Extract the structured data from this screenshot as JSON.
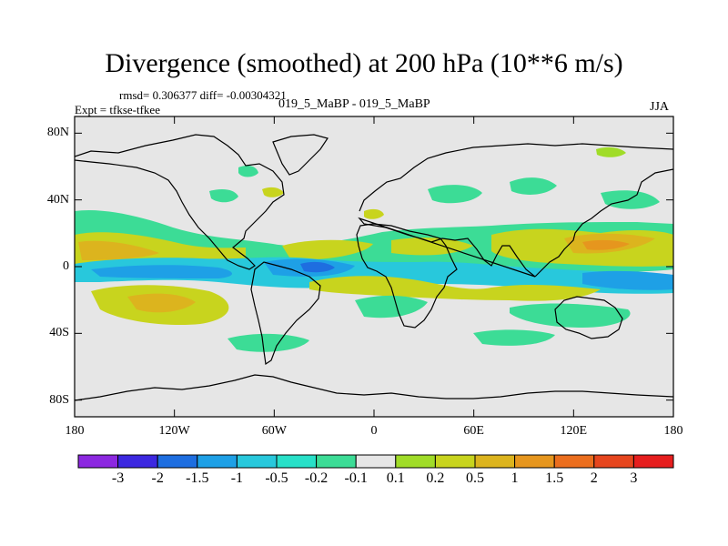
{
  "title": "Divergence (smoothed) at 200 hPa (10**6 m/s)",
  "stats": {
    "rmsd_text": "rmsd= 0.306377 diff= -0.00304321"
  },
  "experiment": "Expt = tfkse-tfkee",
  "cases": "019_5_MaBP - 019_5_MaBP",
  "season": "JJA",
  "chart_data": {
    "type": "heatmap",
    "title": "Divergence (smoothed) at 200 hPa (10**6 m/s)",
    "x_axis": {
      "range": [
        -180,
        180
      ],
      "ticks": [
        -180,
        -120,
        -60,
        0,
        60,
        120,
        180
      ],
      "tick_labels": [
        "180",
        "120W",
        "60W",
        "0",
        "60E",
        "120E",
        "180"
      ]
    },
    "y_axis": {
      "range": [
        -90,
        90
      ],
      "ticks": [
        80,
        40,
        0,
        -40,
        -80
      ],
      "tick_labels": [
        "80N",
        "40N",
        "0",
        "40S",
        "80S"
      ]
    },
    "colorbar": {
      "colors": [
        "#8c28e0",
        "#3c28e0",
        "#1e6ee0",
        "#1ea0e6",
        "#28c8dc",
        "#28e0c8",
        "#3cdc96",
        "#e6e6e6",
        "#a0dc28",
        "#c8d41e",
        "#dcb41e",
        "#e6961e",
        "#eb6e1e",
        "#e6461e",
        "#e61e1e"
      ],
      "labels": [
        "-3",
        "-2",
        "-1.5",
        "-1",
        "-0.5",
        "-0.2",
        "-0.1",
        "0.1",
        "0.2",
        "0.5",
        "1",
        "1.5",
        "2",
        "3"
      ]
    },
    "field_features": [
      {
        "lon": -160,
        "lat": 10,
        "value": 1.0
      },
      {
        "lon": -120,
        "lat": 12,
        "value": 0.5
      },
      {
        "lon": -150,
        "lat": -2,
        "value": -0.5
      },
      {
        "lon": -60,
        "lat": -5,
        "value": -1.0
      },
      {
        "lon": -35,
        "lat": -2,
        "value": -2.0
      },
      {
        "lon": -145,
        "lat": -22,
        "value": 1.0
      },
      {
        "lon": 30,
        "lat": 10,
        "value": 0.5
      },
      {
        "lon": 130,
        "lat": 12,
        "value": 1.0
      },
      {
        "lon": 160,
        "lat": 12,
        "value": 1.0
      },
      {
        "lon": 145,
        "lat": -5,
        "value": -0.5
      },
      {
        "lon": -20,
        "lat": -18,
        "value": 0.5
      },
      {
        "lon": 40,
        "lat": -22,
        "value": 0.2
      }
    ]
  }
}
